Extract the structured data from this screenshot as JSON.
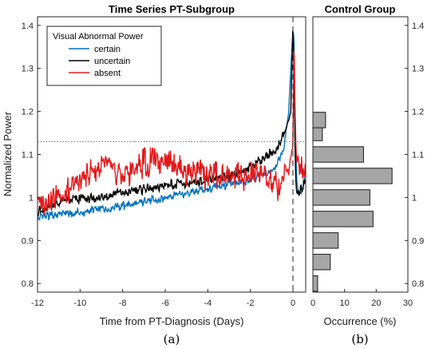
{
  "chart_data": [
    {
      "type": "line",
      "title": "Time Series PT-Subgroup",
      "xlabel": "Time from PT-Diagnosis (Days)",
      "ylabel": "Normalized Power",
      "xlim": [
        -12,
        0.6
      ],
      "ylim": [
        0.78,
        1.42
      ],
      "xticks": [
        -12,
        -10,
        -8,
        -6,
        -4,
        -2,
        0
      ],
      "yticks": [
        0.8,
        0.9,
        1.0,
        1.1,
        1.2,
        1.3,
        1.4
      ],
      "ytick_labels": [
        "0.8",
        "0.9",
        "1",
        "1.1",
        "1.2",
        "1.3",
        "1.4"
      ],
      "reference_hline": 1.13,
      "reference_vline": 0,
      "legend": {
        "title": "Visual Abnormal Power",
        "placement": "top-left"
      },
      "grid": false,
      "series": [
        {
          "name": "certain",
          "color": "#0072BD",
          "x": [
            -12,
            -11,
            -10,
            -9,
            -8,
            -7,
            -6,
            -5,
            -4,
            -3,
            -2,
            -1.5,
            -1,
            -0.6,
            -0.4,
            -0.2,
            -0.1,
            0,
            0.05,
            0.1,
            0.15,
            0.2,
            0.3,
            0.45,
            0.6
          ],
          "y": [
            0.955,
            0.96,
            0.965,
            0.975,
            0.98,
            0.99,
            1.0,
            1.01,
            1.02,
            1.03,
            1.04,
            1.05,
            1.06,
            1.09,
            1.12,
            1.2,
            1.3,
            1.39,
            1.37,
            1.2,
            1.08,
            1.02,
            1.005,
            1.015,
            1.06
          ]
        },
        {
          "name": "uncertain",
          "color": "#000000",
          "x": [
            -12,
            -11,
            -10,
            -9,
            -8,
            -7,
            -6,
            -5,
            -4,
            -3,
            -2,
            -1.5,
            -1,
            -0.6,
            -0.4,
            -0.2,
            -0.1,
            0,
            0.05,
            0.1,
            0.15,
            0.2,
            0.3,
            0.45,
            0.6
          ],
          "y": [
            0.965,
            0.99,
            0.995,
            1.0,
            1.01,
            1.02,
            1.03,
            1.03,
            1.04,
            1.05,
            1.07,
            1.09,
            1.1,
            1.13,
            1.15,
            1.18,
            1.2,
            1.4,
            1.3,
            1.1,
            1.02,
            1.005,
            1.01,
            1.02,
            1.04
          ]
        },
        {
          "name": "absent",
          "color": "#E31A1C",
          "x": [
            -12,
            -11,
            -10,
            -9,
            -8,
            -7,
            -6,
            -5,
            -4,
            -3,
            -2,
            -1.5,
            -1,
            -0.6,
            -0.4,
            -0.2,
            -0.1,
            0,
            0.05,
            0.1,
            0.15,
            0.2,
            0.3,
            0.45,
            0.6
          ],
          "y": [
            0.99,
            1.0,
            1.04,
            1.07,
            1.05,
            1.08,
            1.09,
            1.06,
            1.05,
            1.05,
            1.05,
            1.06,
            1.04,
            1.02,
            1.07,
            1.06,
            1.1,
            1.12,
            1.38,
            1.2,
            1.1,
            1.07,
            1.06,
            1.07,
            1.07
          ]
        }
      ],
      "panel_label": "(a)"
    },
    {
      "type": "bar",
      "orientation": "horizontal",
      "title": "Control Group",
      "xlabel": "Occurrence (%)",
      "xlim": [
        0,
        30
      ],
      "xticks": [
        0,
        10,
        20,
        30
      ],
      "ylim": [
        0.78,
        1.42
      ],
      "yticks": [
        0.8,
        0.9,
        1.0,
        1.1,
        1.2,
        1.3,
        1.4
      ],
      "ytick_labels": [
        "0.8",
        "0.9",
        "1",
        "1.1",
        "1.2",
        "1.3",
        "1.4"
      ],
      "bar_color": "#A6A6A6",
      "bin_centers": [
        0.8,
        0.85,
        0.9,
        0.95,
        1.0,
        1.05,
        1.1,
        1.15,
        1.18
      ],
      "values": [
        1.5,
        5.5,
        8,
        19,
        18,
        25,
        16,
        3,
        4
      ],
      "panel_label": "(b)"
    }
  ]
}
